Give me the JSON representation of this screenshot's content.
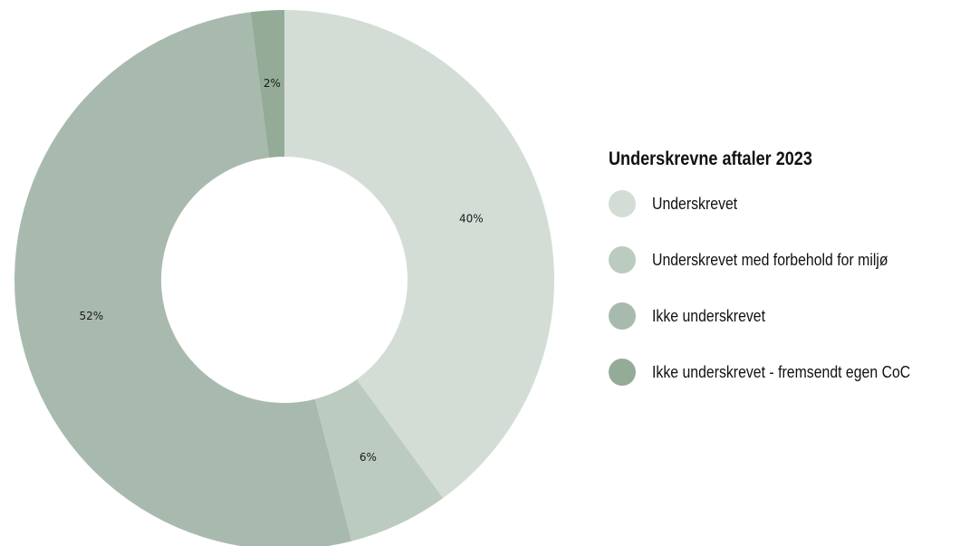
{
  "chart_data": {
    "type": "pie",
    "donut": true,
    "title": "Underskrevne aftaler 2023",
    "categories": [
      "Underskrevet",
      "Underskrevet med forbehold for miljø",
      "Ikke underskrevet",
      "Ikke underskrevet - fremsendt egen CoC"
    ],
    "values": [
      40,
      6,
      52,
      2
    ],
    "value_labels": [
      "40%",
      "6%",
      "52%",
      "2%"
    ],
    "colors": [
      "#d3ddd6",
      "#bccbbf",
      "#a8baad",
      "#94ab98"
    ],
    "legend_position": "right"
  }
}
